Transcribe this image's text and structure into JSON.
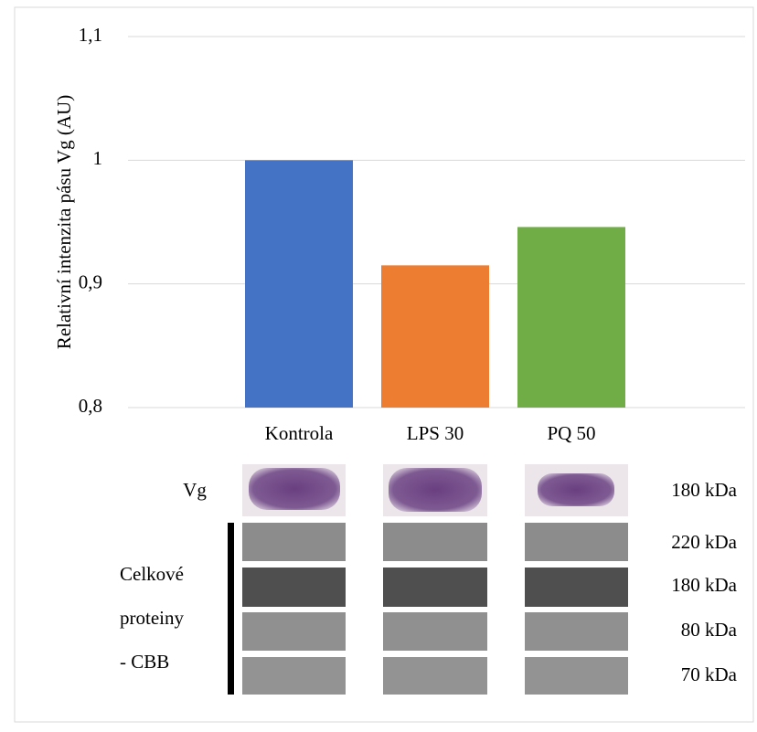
{
  "chart_data": {
    "type": "bar",
    "y_label": "Relativní intenzita pásu Vg (AU)",
    "categories": [
      "Kontrola",
      "LPS 30",
      "PQ 50"
    ],
    "values": [
      1.0,
      0.915,
      0.946
    ],
    "colors": [
      "#4472c4",
      "#ed7d31",
      "#70ad47"
    ],
    "ylim": [
      0.8,
      1.1
    ],
    "yticks": [
      {
        "value": 0.8,
        "label": "0,8"
      },
      {
        "value": 0.9,
        "label": "0,9"
      },
      1,
      {
        "value": 1.1,
        "label": "1,1"
      }
    ],
    "grid": true
  },
  "blot": {
    "vg_label": "Vg",
    "vg_size": "180 kDa",
    "cbb_label": [
      "Celkové",
      "proteiny",
      "- CBB"
    ],
    "cbb_sizes": [
      "220 kDa",
      "180 kDa",
      "80 kDa",
      "70 kDa"
    ]
  }
}
